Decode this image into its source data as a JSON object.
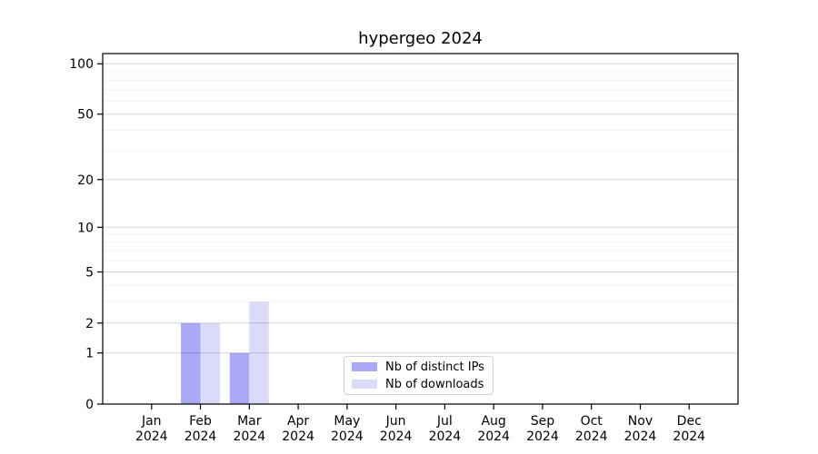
{
  "chart_data": {
    "type": "bar",
    "title": "hypergeo 2024",
    "categories": [
      "Jan",
      "Feb",
      "Mar",
      "Apr",
      "May",
      "Jun",
      "Jul",
      "Aug",
      "Sep",
      "Oct",
      "Nov",
      "Dec"
    ],
    "x_tick_second_line": "2024",
    "series": [
      {
        "name": "Nb of distinct IPs",
        "color": "#a9a9f7",
        "values": [
          0,
          2,
          1,
          0,
          0,
          0,
          0,
          0,
          0,
          0,
          0,
          0
        ]
      },
      {
        "name": "Nb of downloads",
        "color": "#dbdbf9",
        "values": [
          0,
          2,
          3,
          0,
          0,
          0,
          0,
          0,
          0,
          0,
          0,
          0
        ]
      }
    ],
    "xlabel": "",
    "ylabel": "",
    "yscale": "log1p",
    "ylim": [
      0,
      115
    ],
    "y_major_ticks": [
      0,
      1,
      2,
      5,
      10,
      20,
      50,
      100
    ],
    "y_minor_ticks": [
      3,
      4,
      6,
      7,
      8,
      9,
      30,
      40,
      60,
      70,
      80,
      90
    ],
    "grid": "on",
    "legend_position": "lower center inside"
  }
}
